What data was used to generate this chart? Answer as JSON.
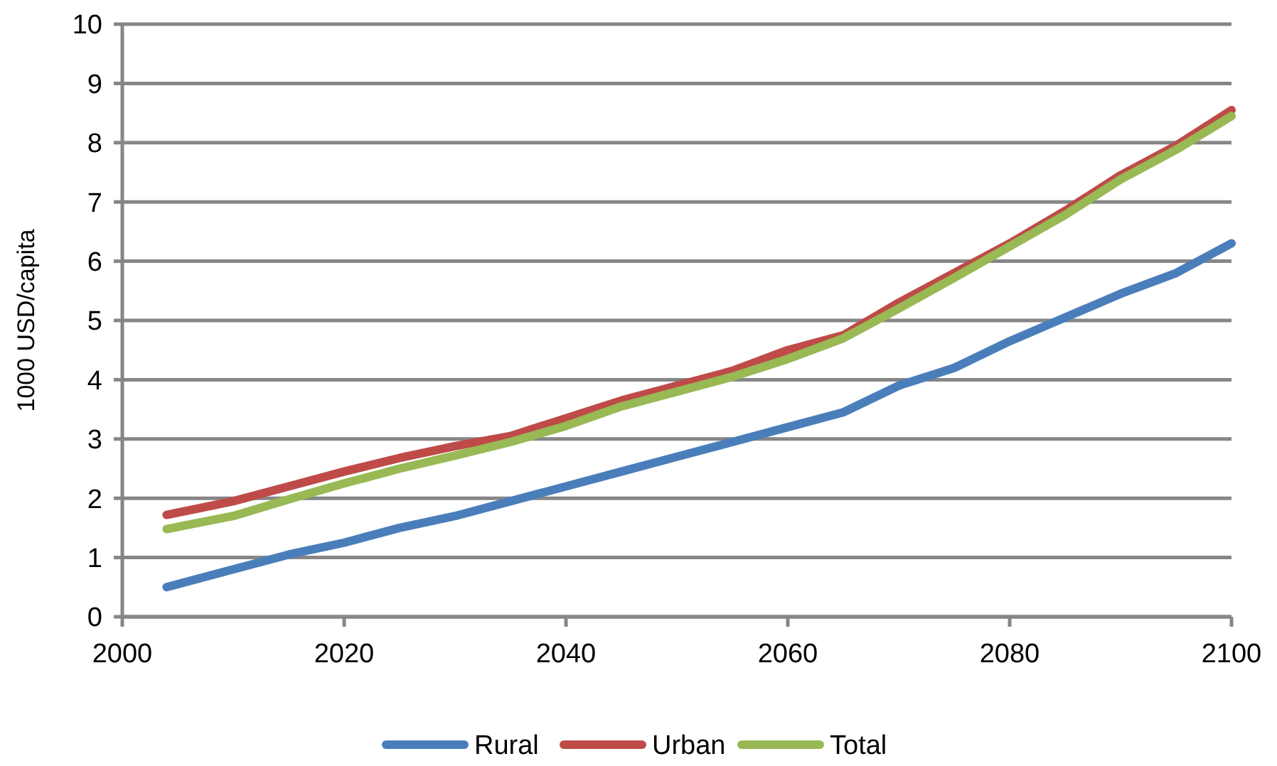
{
  "chart_data": {
    "type": "line",
    "ylabel": "1000 USD/capita",
    "x": [
      2004,
      2010,
      2015,
      2020,
      2025,
      2030,
      2035,
      2040,
      2045,
      2050,
      2055,
      2060,
      2065,
      2070,
      2075,
      2080,
      2085,
      2090,
      2095,
      2100
    ],
    "series": [
      {
        "name": "Rural",
        "color": "#4a7ebb",
        "values": [
          0.5,
          0.8,
          1.05,
          1.25,
          1.5,
          1.7,
          1.95,
          2.2,
          2.45,
          2.7,
          2.95,
          3.2,
          3.45,
          3.9,
          4.2,
          4.65,
          5.05,
          5.45,
          5.8,
          6.3
        ]
      },
      {
        "name": "Urban",
        "color": "#be4b48",
        "values": [
          1.72,
          1.95,
          2.2,
          2.45,
          2.68,
          2.88,
          3.05,
          3.35,
          3.65,
          3.9,
          4.15,
          4.5,
          4.75,
          5.3,
          5.8,
          6.3,
          6.85,
          7.45,
          7.95,
          8.55
        ]
      },
      {
        "name": "Total",
        "color": "#98b954",
        "values": [
          1.48,
          1.7,
          1.98,
          2.25,
          2.5,
          2.72,
          2.95,
          3.22,
          3.55,
          3.8,
          4.05,
          4.35,
          4.7,
          5.2,
          5.72,
          6.25,
          6.78,
          7.38,
          7.88,
          8.45
        ]
      }
    ],
    "xlim": [
      2000,
      2100
    ],
    "xticks": [
      2000,
      2020,
      2040,
      2060,
      2080,
      2100
    ],
    "ylim": [
      0,
      10
    ],
    "yticks": [
      0,
      1,
      2,
      3,
      4,
      5,
      6,
      7,
      8,
      9,
      10
    ],
    "grid": "y",
    "legend": "bottom",
    "marker": "none",
    "line_style": "solid"
  }
}
